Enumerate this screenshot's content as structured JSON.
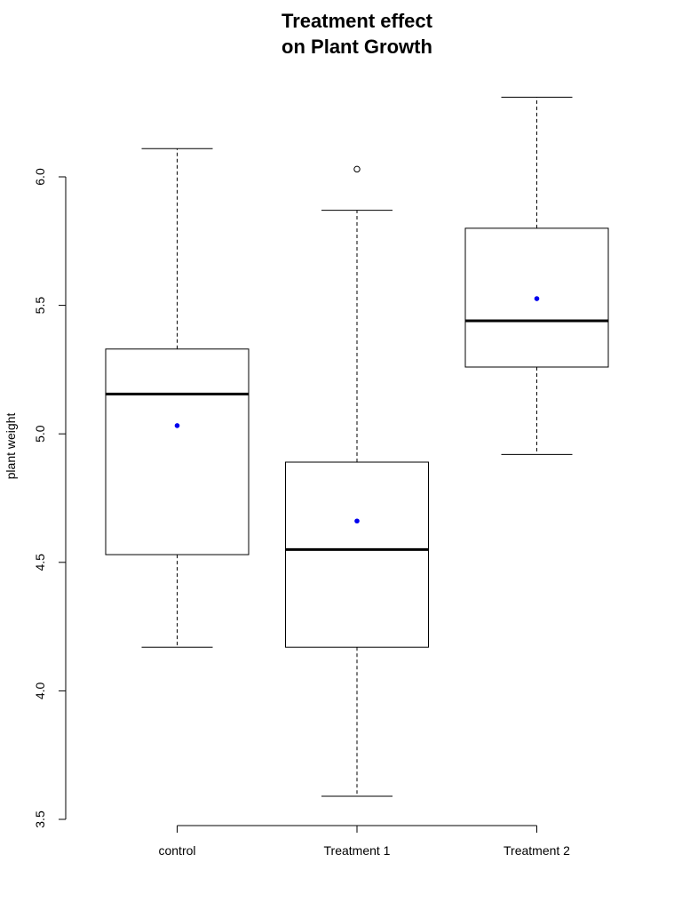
{
  "chart_data": {
    "type": "box",
    "title_line1": "Treatment effect",
    "title_line2": "on Plant Growth",
    "xlabel": "",
    "ylabel": "plant weight",
    "ylim": [
      3.5,
      6.3
    ],
    "yticks": [
      3.5,
      4.0,
      4.5,
      5.0,
      5.5,
      6.0
    ],
    "ytick_labels": [
      "3.5",
      "4.0",
      "4.5",
      "5.0",
      "5.5",
      "6.0"
    ],
    "categories": [
      "control",
      "Treatment 1",
      "Treatment 2"
    ],
    "boxes": [
      {
        "name": "control",
        "whisker_low": 4.17,
        "q1": 4.53,
        "median": 5.155,
        "q3": 5.33,
        "whisker_high": 6.11,
        "mean": 5.032,
        "outliers": []
      },
      {
        "name": "Treatment 1",
        "whisker_low": 3.59,
        "q1": 4.17,
        "median": 4.55,
        "q3": 4.89,
        "whisker_high": 5.87,
        "mean": 4.661,
        "outliers": [
          6.03
        ]
      },
      {
        "name": "Treatment 2",
        "whisker_low": 4.92,
        "q1": 5.26,
        "median": 5.44,
        "q3": 5.8,
        "whisker_high": 6.31,
        "mean": 5.526,
        "outliers": []
      }
    ],
    "mean_color": "#0000ee",
    "box_color": "#000000",
    "grid": false,
    "legend": "none"
  }
}
